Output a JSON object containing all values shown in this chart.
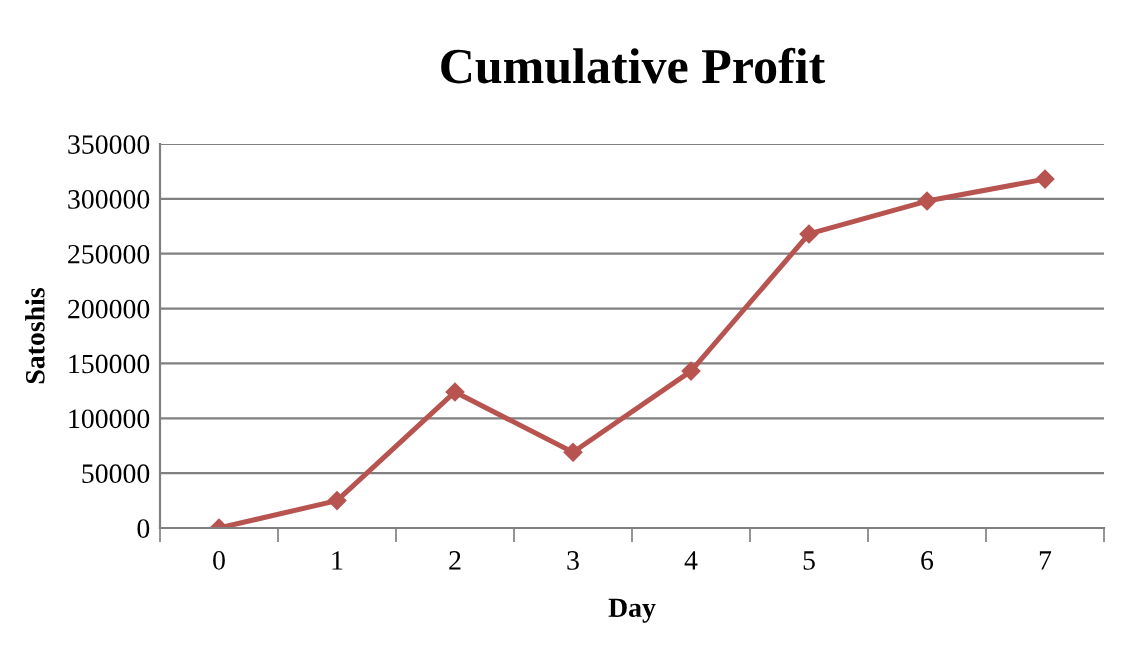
{
  "chart_data": {
    "type": "line",
    "title": "Cumulative Profit",
    "xlabel": "Day",
    "ylabel": "Satoshis",
    "categories": [
      "0",
      "1",
      "2",
      "3",
      "4",
      "5",
      "6",
      "7"
    ],
    "series": [
      {
        "color": "#b85450",
        "values": [
          0,
          25000,
          124000,
          69000,
          143000,
          268000,
          298000,
          318000
        ]
      }
    ],
    "ylim": [
      0,
      350000
    ],
    "yticks": [
      0,
      50000,
      100000,
      150000,
      200000,
      250000,
      300000,
      350000
    ],
    "grid": "y",
    "marker": "diamond",
    "line_style": "solid"
  }
}
